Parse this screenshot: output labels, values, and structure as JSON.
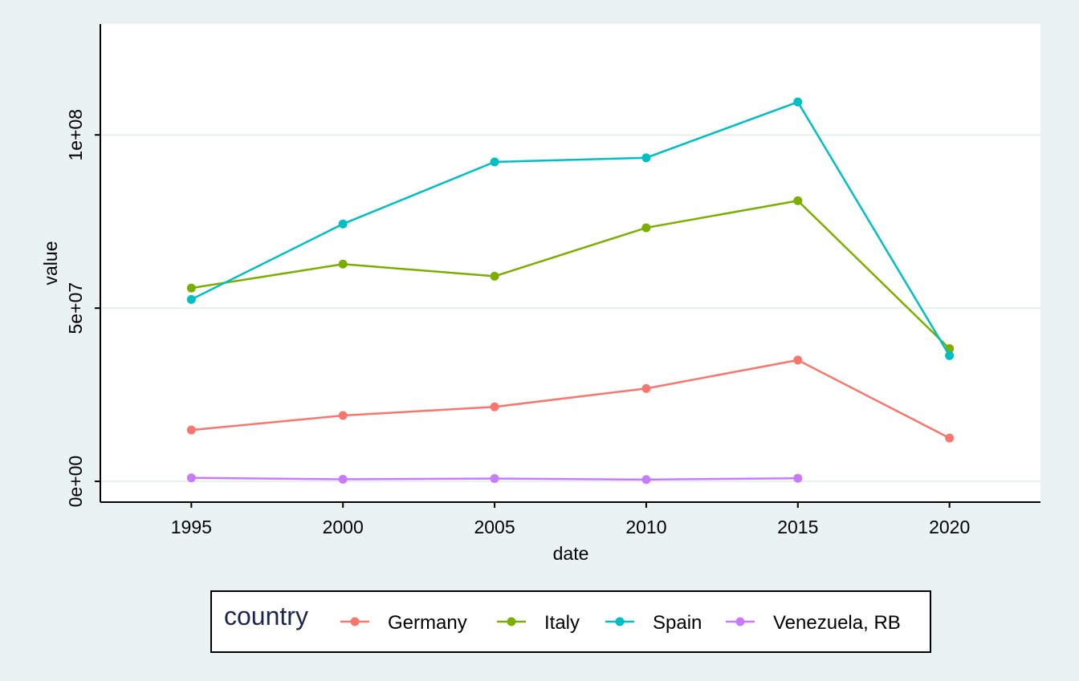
{
  "chart_data": {
    "type": "line",
    "title": "",
    "xlabel": "date",
    "ylabel": "value",
    "x": [
      1995,
      2000,
      2005,
      2010,
      2015,
      2020
    ],
    "xlim": [
      1992,
      2023
    ],
    "ylim": [
      -6000000,
      132000000
    ],
    "x_ticks": [
      1995,
      2000,
      2005,
      2010,
      2015,
      2020
    ],
    "x_tick_labels": [
      "1995",
      "2000",
      "2005",
      "2010",
      "2015",
      "2020"
    ],
    "y_ticks": [
      0,
      50000000,
      100000000
    ],
    "y_tick_labels": [
      "0e+00",
      "5e+07",
      "1e+08"
    ],
    "grid": true,
    "legend": {
      "title": "country",
      "position": "bottom"
    },
    "series": [
      {
        "name": "Germany",
        "color": "#f8766d",
        "values": [
          14800000,
          19000000,
          21500000,
          26800000,
          35000000,
          12500000
        ]
      },
      {
        "name": "Italy",
        "color": "#7cae00",
        "values": [
          55800000,
          62700000,
          59200000,
          73200000,
          81000000,
          38300000
        ]
      },
      {
        "name": "Spain",
        "color": "#00bfc4",
        "values": [
          52500000,
          74300000,
          92200000,
          93400000,
          109500000,
          36300000
        ]
      },
      {
        "name": "Venezuela, RB",
        "color": "#c77cff",
        "values": [
          1000000,
          600000,
          800000,
          500000,
          900000,
          null
        ]
      }
    ]
  }
}
